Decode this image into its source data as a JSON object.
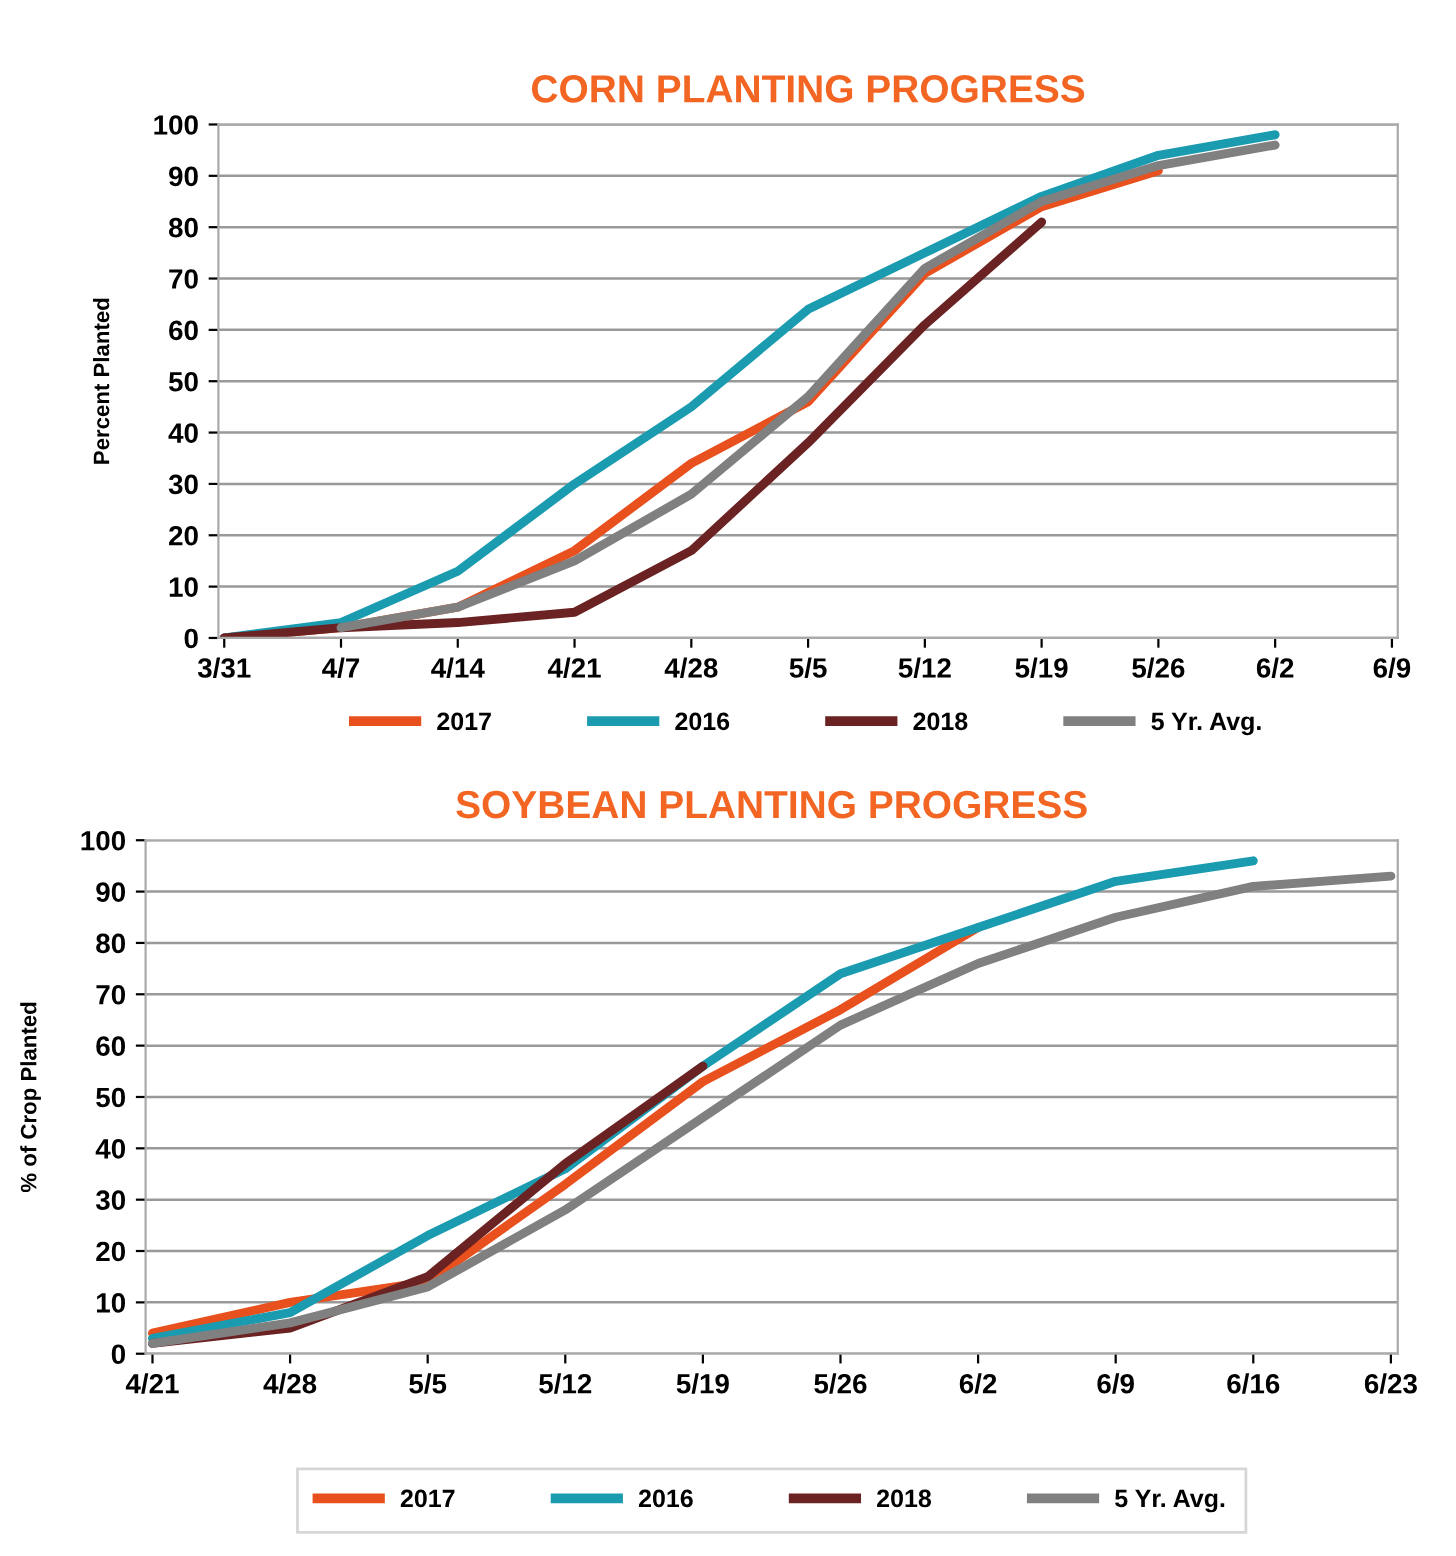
{
  "chart_data": [
    {
      "type": "line",
      "title": "CORN PLANTING PROGRESS",
      "ylabel": "Percent Planted",
      "categories": [
        "3/31",
        "4/7",
        "4/14",
        "4/21",
        "4/28",
        "5/5",
        "5/12",
        "5/19",
        "5/26",
        "6/2",
        "6/9"
      ],
      "ylim": [
        0,
        100
      ],
      "yticks": [
        0,
        10,
        20,
        30,
        40,
        50,
        60,
        70,
        80,
        90,
        100
      ],
      "grid": "y",
      "legend": "bottom",
      "marker": "none",
      "line_style": "solid",
      "series": [
        {
          "name": "2017",
          "color": "#e8501e",
          "values": [
            0,
            2,
            6,
            17,
            34,
            46,
            71,
            84,
            91,
            null,
            null
          ]
        },
        {
          "name": "2016",
          "color": "#1a9bb0",
          "values": [
            0,
            3,
            13,
            30,
            45,
            64,
            75,
            86,
            94,
            98,
            null
          ]
        },
        {
          "name": "2018",
          "color": "#6b2222",
          "values": [
            0,
            2,
            3,
            5,
            17,
            38,
            61,
            81,
            null,
            null,
            null
          ]
        },
        {
          "name": "5 Yr. Avg.",
          "color": "#808080",
          "values": [
            null,
            2,
            6,
            15,
            28,
            47,
            72,
            85,
            92,
            96,
            null
          ]
        }
      ]
    },
    {
      "type": "line",
      "title": "SOYBEAN PLANTING PROGRESS",
      "ylabel": "% of Crop Planted",
      "categories": [
        "4/21",
        "4/28",
        "5/5",
        "5/12",
        "5/19",
        "5/26",
        "6/2",
        "6/9",
        "6/16",
        "6/23"
      ],
      "ylim": [
        0,
        100
      ],
      "yticks": [
        0,
        10,
        20,
        30,
        40,
        50,
        60,
        70,
        80,
        90,
        100
      ],
      "grid": "y",
      "legend": "bottom",
      "marker": "none",
      "line_style": "solid",
      "series": [
        {
          "name": "2017",
          "color": "#e8501e",
          "values": [
            4,
            10,
            14,
            33,
            53,
            67,
            83,
            null,
            null,
            null
          ]
        },
        {
          "name": "2016",
          "color": "#1a9bb0",
          "values": [
            3,
            8,
            23,
            36,
            56,
            74,
            83,
            92,
            96,
            null
          ]
        },
        {
          "name": "2018",
          "color": "#6b2222",
          "values": [
            2,
            5,
            15,
            37,
            56,
            null,
            null,
            null,
            null,
            null
          ]
        },
        {
          "name": "5 Yr. Avg.",
          "color": "#808080",
          "values": [
            2,
            6,
            13,
            28,
            46,
            64,
            76,
            85,
            91,
            93
          ]
        }
      ]
    }
  ]
}
